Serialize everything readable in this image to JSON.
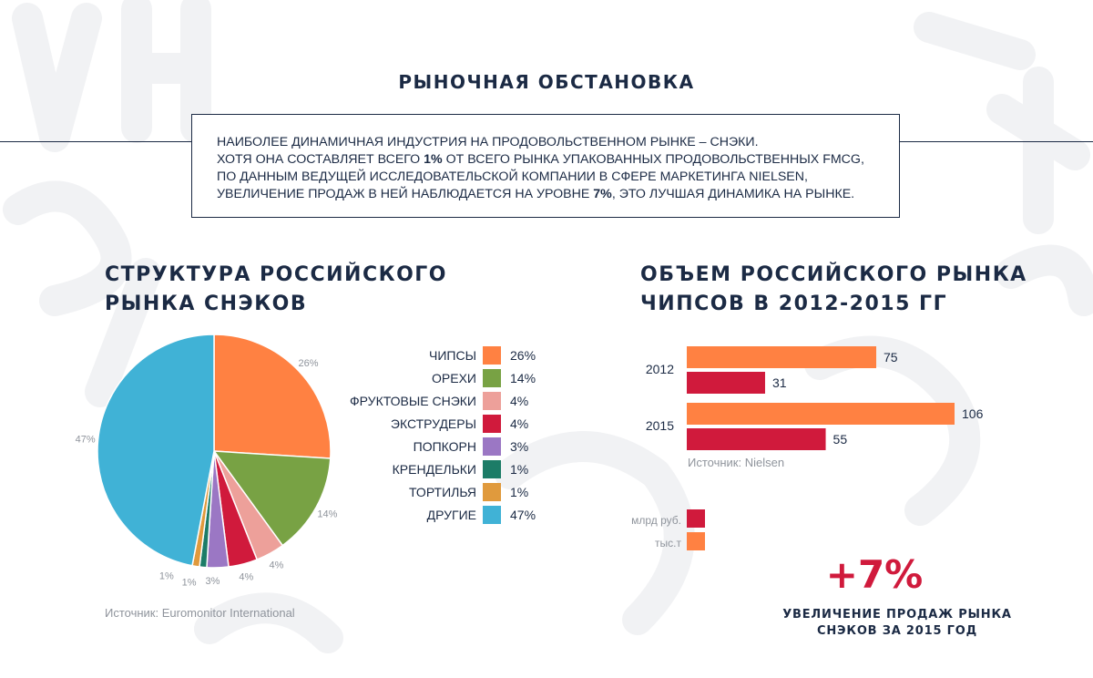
{
  "title": "РЫНОЧНАЯ ОБСТАНОВКА",
  "intro": {
    "line1": "НАИБОЛЕЕ ДИНАМИЧНАЯ ИНДУСТРИЯ НА ПРОДОВОЛЬСТВЕННОМ РЫНКЕ – СНЭКИ.",
    "line2_a": "ХОТЯ ОНА СОСТАВЛЯЕТ ВСЕГО ",
    "line2_b": "1%",
    "line2_c": " ОТ ВСЕГО РЫНКА УПАКОВАННЫХ ПРОДОВОЛЬСТВЕННЫХ FMCG,",
    "line3": "ПО ДАННЫМ ВЕДУЩЕЙ ИССЛЕДОВАТЕЛЬСКОЙ КОМПАНИИ В СФЕРЕ МАРКЕТИНГА NIELSEN,",
    "line4_a": "УВЕЛИЧЕНИЕ ПРОДАЖ В НЕЙ НАБЛЮДАЕТСЯ НА УРОВНЕ ",
    "line4_b": "7%",
    "line4_c": ", ЭТО ЛУЧШАЯ ДИНАМИКА НА РЫНКЕ."
  },
  "pie_section": {
    "title_line1": "СТРУКТУРА РОССИЙСКОГО",
    "title_line2": "РЫНКА СНЭКОВ",
    "source": "Источник: Euromonitor International"
  },
  "bar_section": {
    "title_line1": "ОБЪЕМ РОССИЙСКОГО РЫНКА",
    "title_line2": "ЧИПСОВ В 2012-2015 ГГ",
    "source": "Источник: Nielsen",
    "legend": [
      {
        "label": "млрд руб.",
        "color": "#d01a3c"
      },
      {
        "label": "тыс.т",
        "color": "#ff8142"
      }
    ]
  },
  "stat": {
    "value": "+7%",
    "caption_line1": "УВЕЛИЧЕНИЕ ПРОДАЖ РЫНКА",
    "caption_line2": "СНЭКОВ ЗА 2015 ГОД"
  },
  "chart_data": [
    {
      "type": "pie",
      "slices": [
        {
          "label": "ЧИПСЫ",
          "value": 26,
          "display": "26%",
          "color": "#ff8142"
        },
        {
          "label": "ОРЕХИ",
          "value": 14,
          "display": "14%",
          "color": "#78a244"
        },
        {
          "label": "ФРУКТОВЫЕ СНЭКИ",
          "value": 4,
          "display": "4%",
          "color": "#eda09a"
        },
        {
          "label": "ЭКСТРУДЕРЫ",
          "value": 4,
          "display": "4%",
          "color": "#d01a3c"
        },
        {
          "label": "ПОПКОРН",
          "value": 3,
          "display": "3%",
          "color": "#9b77c4"
        },
        {
          "label": "КРЕНДЕЛЬКИ",
          "value": 1,
          "display": "1%",
          "color": "#1c7c67"
        },
        {
          "label": "ТОРТИЛЬЯ",
          "value": 1,
          "display": "1%",
          "color": "#e09a3d"
        },
        {
          "label": "ДРУГИЕ",
          "value": 47,
          "display": "47%",
          "color": "#40b2d6"
        }
      ]
    },
    {
      "type": "bar",
      "orientation": "horizontal",
      "categories": [
        "2012",
        "2015"
      ],
      "series": [
        {
          "name": "тыс.т",
          "color": "#ff8142",
          "values": [
            75,
            106
          ]
        },
        {
          "name": "млрд руб.",
          "color": "#d01a3c",
          "values": [
            31,
            55
          ]
        }
      ]
    }
  ]
}
